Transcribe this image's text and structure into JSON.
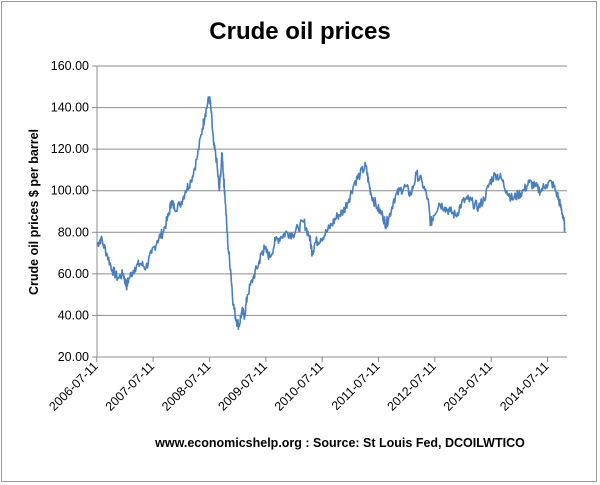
{
  "chart_data": {
    "type": "line",
    "title": "Crude oil prices",
    "ylabel": "Crude oil prices $ per barrel",
    "xlabel": "",
    "ylim": [
      20,
      160
    ],
    "yticks": [
      "20.00",
      "40.00",
      "60.00",
      "80.00",
      "100.00",
      "120.00",
      "140.00",
      "160.00"
    ],
    "xticks": [
      "2006-07-11",
      "2007-07-11",
      "2008-07-11",
      "2009-07-11",
      "2010-07-11",
      "2011-07-11",
      "2012-07-11",
      "2013-07-11",
      "2014-07-11"
    ],
    "grid": "horizontal",
    "legend": "none",
    "line_color": "#4a7ebb",
    "series": [
      {
        "x": [
          2006.53,
          2006.6,
          2006.7,
          2006.8,
          2006.9,
          2007.0,
          2007.05,
          2007.1,
          2007.2,
          2007.3,
          2007.4,
          2007.5,
          2007.6,
          2007.7,
          2007.8,
          2007.85,
          2007.9,
          2008.0,
          2008.1,
          2008.2,
          2008.3,
          2008.4,
          2008.45,
          2008.52,
          2008.55,
          2008.6,
          2008.65,
          2008.7,
          2008.75,
          2008.78,
          2008.8,
          2008.85,
          2008.9,
          2008.95,
          2009.0,
          2009.05,
          2009.1,
          2009.15,
          2009.2,
          2009.3,
          2009.4,
          2009.45,
          2009.5,
          2009.6,
          2009.7,
          2009.8,
          2009.9,
          2010.0,
          2010.1,
          2010.2,
          2010.3,
          2010.35,
          2010.4,
          2010.5,
          2010.6,
          2010.7,
          2010.8,
          2010.9,
          2011.0,
          2011.1,
          2011.2,
          2011.3,
          2011.35,
          2011.4,
          2011.5,
          2011.6,
          2011.65,
          2011.7,
          2011.8,
          2011.9,
          2012.0,
          2012.1,
          2012.2,
          2012.3,
          2012.4,
          2012.45,
          2012.5,
          2012.6,
          2012.7,
          2012.8,
          2012.9,
          2013.0,
          2013.1,
          2013.2,
          2013.3,
          2013.4,
          2013.5,
          2013.6,
          2013.7,
          2013.8,
          2013.9,
          2014.0,
          2014.1,
          2014.2,
          2014.3,
          2014.4,
          2014.5,
          2014.6,
          2014.7,
          2014.75,
          2014.8,
          2014.83
        ],
        "values": [
          74,
          77,
          70,
          62,
          58,
          60,
          54,
          58,
          63,
          65,
          63,
          70,
          76,
          80,
          88,
          95,
          92,
          93,
          100,
          105,
          115,
          130,
          137,
          145,
          140,
          122,
          115,
          100,
          118,
          105,
          98,
          75,
          62,
          45,
          38,
          35,
          42,
          40,
          50,
          58,
          65,
          70,
          72,
          68,
          76,
          78,
          80,
          79,
          82,
          85,
          78,
          70,
          75,
          77,
          80,
          84,
          88,
          90,
          96,
          104,
          108,
          112,
          104,
          98,
          92,
          88,
          84,
          86,
          96,
          100,
          102,
          98,
          108,
          104,
          96,
          84,
          88,
          94,
          92,
          90,
          88,
          94,
          96,
          94,
          92,
          96,
          104,
          108,
          106,
          100,
          96,
          98,
          100,
          104,
          102,
          100,
          103,
          104,
          98,
          93,
          88,
          82
        ]
      }
    ]
  },
  "source_note": "www.economicshelp.org : Source: St Louis Fed, DCOILWTICO"
}
